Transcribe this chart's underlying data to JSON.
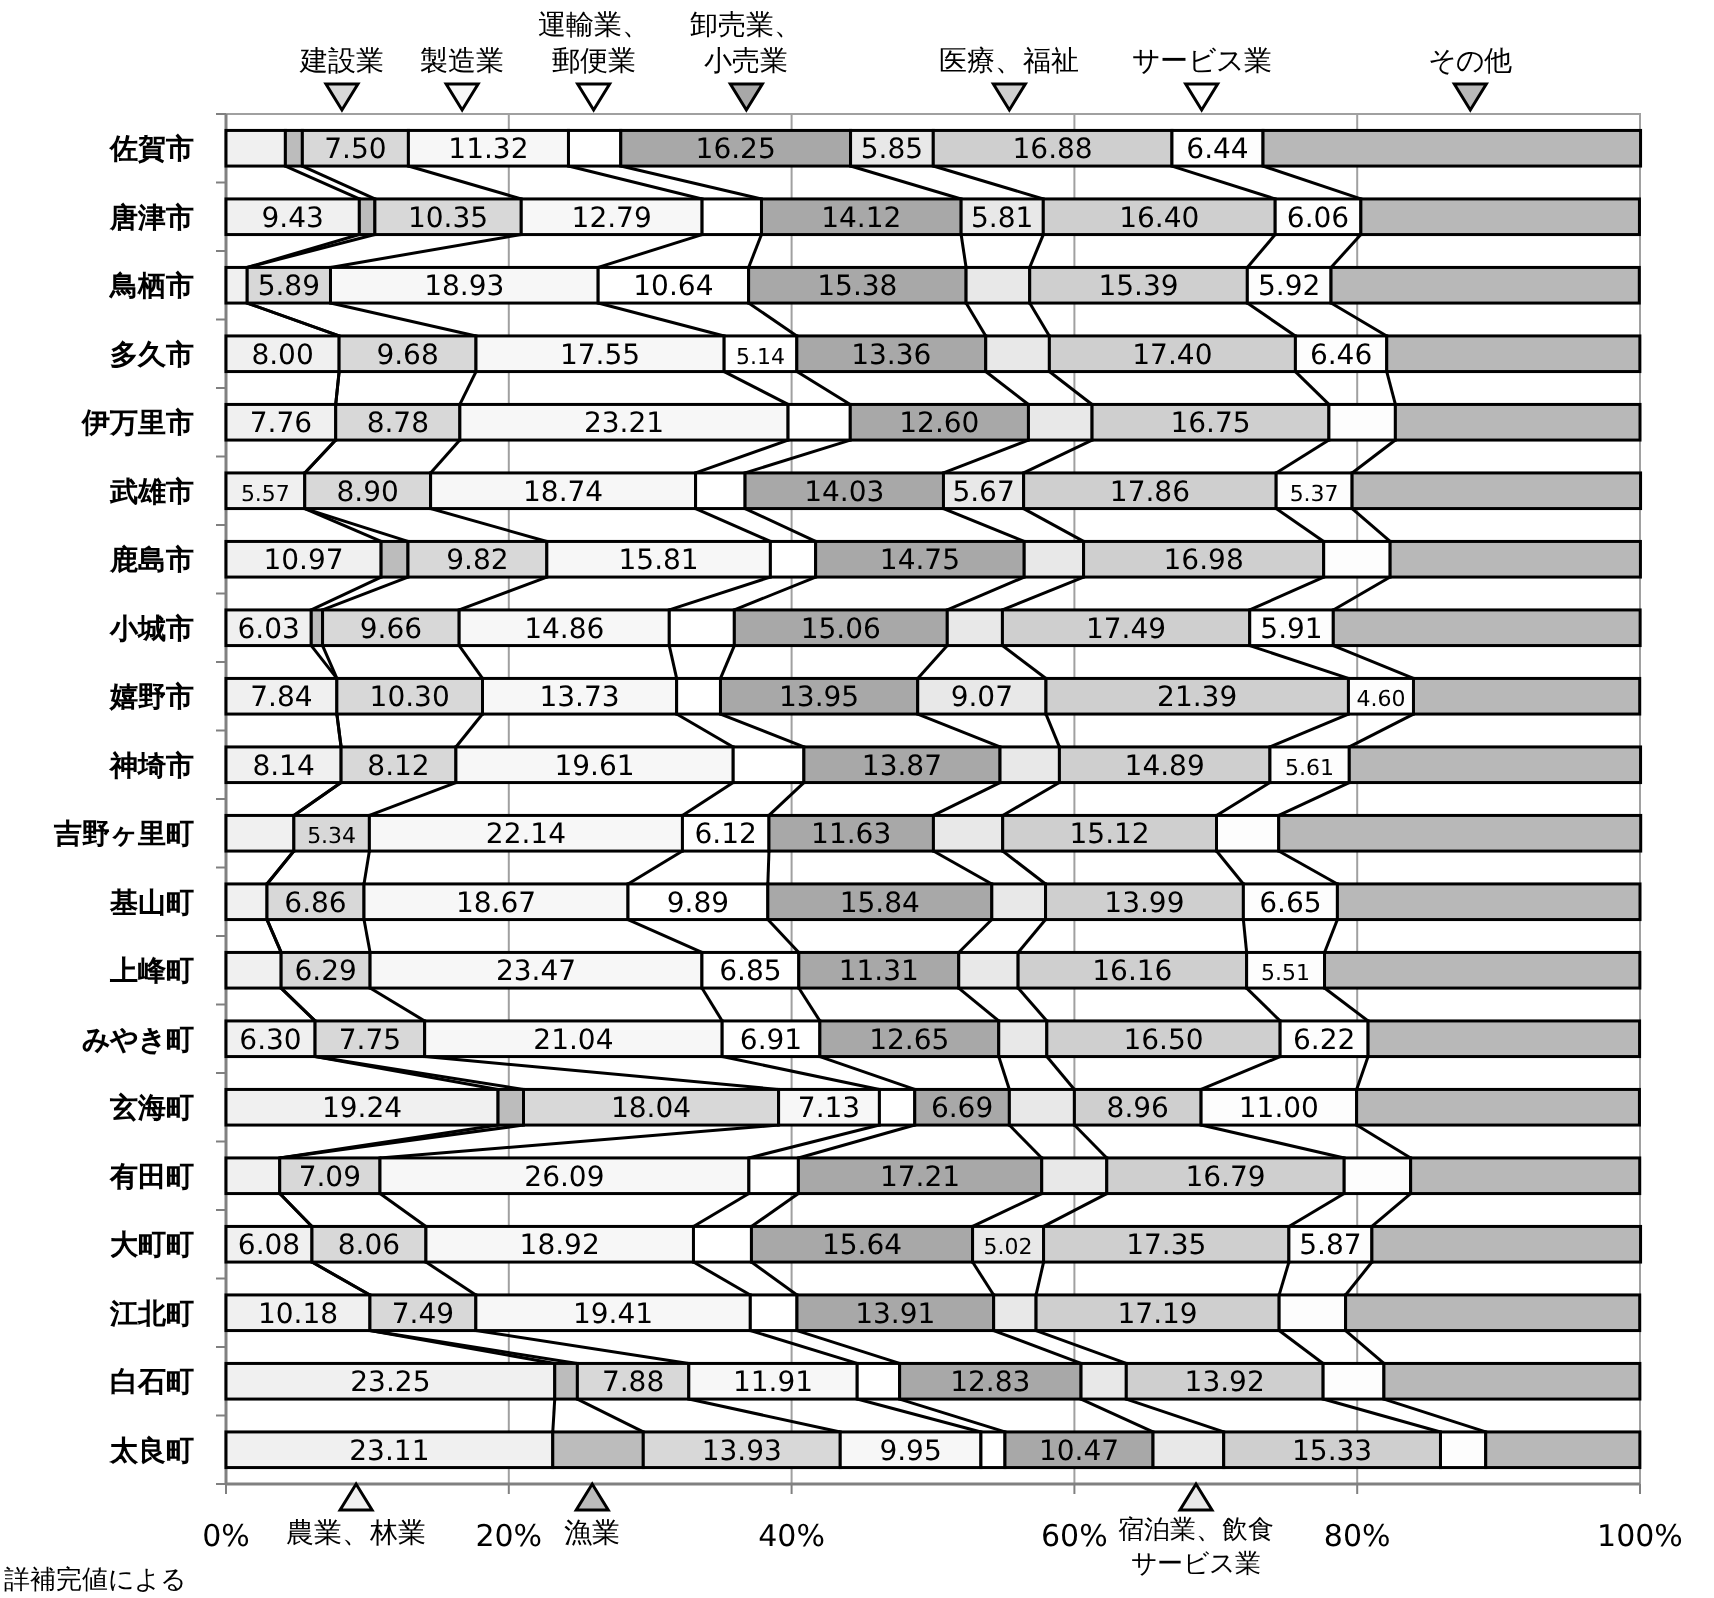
{
  "chart_data": {
    "type": "bar",
    "orientation": "horizontal",
    "stacked": true,
    "categories": [
      "佐賀市",
      "唐津市",
      "鳥栖市",
      "多久市",
      "伊万里市",
      "武雄市",
      "鹿島市",
      "小城市",
      "嬉野市",
      "神埼市",
      "吉野ヶ里町",
      "基山町",
      "上峰町",
      "みやき町",
      "玄海町",
      "有田町",
      "大町町",
      "江北町",
      "白石町",
      "太良町"
    ],
    "series": [
      {
        "name": "農業、林業",
        "color": "#f0f0f0",
        "values": [
          4.2,
          9.43,
          1.5,
          8.0,
          7.76,
          5.57,
          10.97,
          6.03,
          7.84,
          8.14,
          4.8,
          2.9,
          3.9,
          6.3,
          19.24,
          3.8,
          6.08,
          10.18,
          23.25,
          23.11
        ],
        "value_labels": [
          null,
          "9.43",
          null,
          "8.00",
          "7.76",
          "5.57",
          "10.97",
          "6.03",
          "7.84",
          "8.14",
          null,
          null,
          null,
          "6.30",
          "19.24",
          null,
          "6.08",
          "10.18",
          "23.25",
          "23.11"
        ]
      },
      {
        "name": "漁業",
        "color": "#bcbcbc",
        "values": [
          1.2,
          1.1,
          0,
          0,
          0,
          0,
          1.9,
          0.8,
          0,
          0,
          0,
          0,
          0,
          0,
          1.8,
          0,
          0,
          0,
          1.6,
          6.4
        ],
        "value_labels": [
          null,
          null,
          null,
          null,
          null,
          null,
          null,
          null,
          null,
          null,
          null,
          null,
          null,
          null,
          null,
          null,
          null,
          null,
          null,
          null
        ]
      },
      {
        "name": "建設業",
        "color": "#d8d8d8",
        "values": [
          7.5,
          10.35,
          5.89,
          9.68,
          8.78,
          8.9,
          9.82,
          9.66,
          10.3,
          8.12,
          5.34,
          6.86,
          6.29,
          7.75,
          18.04,
          7.09,
          8.06,
          7.49,
          7.88,
          13.93
        ],
        "value_labels": [
          "7.50",
          "10.35",
          "5.89",
          "9.68",
          "8.78",
          "8.90",
          "9.82",
          "9.66",
          "10.30",
          "8.12",
          "5.34",
          "6.86",
          "6.29",
          "7.75",
          "18.04",
          "7.09",
          "8.06",
          "7.49",
          "7.88",
          "13.93"
        ]
      },
      {
        "name": "製造業",
        "color": "#f7f7f7",
        "values": [
          11.32,
          12.79,
          18.93,
          17.55,
          23.21,
          18.74,
          15.81,
          14.86,
          13.73,
          19.61,
          22.14,
          18.67,
          23.47,
          21.04,
          7.13,
          26.09,
          18.92,
          19.41,
          11.91,
          9.95
        ],
        "value_labels": [
          "11.32",
          "12.79",
          "18.93",
          "17.55",
          "23.21",
          "18.74",
          "15.81",
          "14.86",
          "13.73",
          "19.61",
          "22.14",
          "18.67",
          "23.47",
          "21.04",
          "7.13",
          "26.09",
          "18.92",
          "19.41",
          "11.91",
          "9.95"
        ]
      },
      {
        "name": "運輸業、郵便業",
        "color": "#ffffff",
        "values": [
          3.7,
          4.2,
          10.64,
          5.14,
          4.4,
          3.5,
          3.2,
          4.6,
          3.1,
          5.0,
          6.12,
          9.89,
          6.85,
          6.91,
          2.5,
          3.5,
          4.1,
          3.3,
          3.0,
          1.7
        ],
        "value_labels": [
          null,
          null,
          "10.64",
          "5.14",
          null,
          null,
          null,
          null,
          null,
          null,
          "6.12",
          "9.89",
          "6.85",
          "6.91",
          null,
          null,
          null,
          null,
          null,
          null
        ]
      },
      {
        "name": "卸売業、小売業",
        "color": "#a8a8a8",
        "values": [
          16.25,
          14.12,
          15.38,
          13.36,
          12.6,
          14.03,
          14.75,
          15.06,
          13.95,
          13.87,
          11.63,
          15.84,
          11.31,
          12.65,
          6.69,
          17.21,
          15.64,
          13.91,
          12.83,
          10.47
        ],
        "value_labels": [
          "16.25",
          "14.12",
          "15.38",
          "13.36",
          "12.60",
          "14.03",
          "14.75",
          "15.06",
          "13.95",
          "13.87",
          "11.63",
          "15.84",
          "11.31",
          "12.65",
          "6.69",
          "17.21",
          "15.64",
          "13.91",
          "12.83",
          "10.47"
        ]
      },
      {
        "name": "宿泊業、飲食サービス業",
        "color": "#e8e8e8",
        "values": [
          5.85,
          5.81,
          4.5,
          4.5,
          4.5,
          5.67,
          4.2,
          3.9,
          9.07,
          4.2,
          4.9,
          3.8,
          4.2,
          3.4,
          4.6,
          4.6,
          5.02,
          3.0,
          3.2,
          5.0
        ],
        "value_labels": [
          "5.85",
          "5.81",
          null,
          null,
          null,
          "5.67",
          null,
          null,
          "9.07",
          null,
          null,
          null,
          null,
          null,
          null,
          null,
          "5.02",
          null,
          null,
          null
        ]
      },
      {
        "name": "医療、福祉",
        "color": "#cfcfcf",
        "values": [
          16.88,
          16.4,
          15.39,
          17.4,
          16.75,
          17.86,
          16.98,
          17.49,
          21.39,
          14.89,
          15.12,
          13.99,
          16.16,
          16.5,
          8.96,
          16.79,
          17.35,
          17.19,
          13.92,
          15.33
        ],
        "value_labels": [
          "16.88",
          "16.40",
          "15.39",
          "17.40",
          "16.75",
          "17.86",
          "16.98",
          "17.49",
          "21.39",
          "14.89",
          "15.12",
          "13.99",
          "16.16",
          "16.50",
          "8.96",
          "16.79",
          "17.35",
          "17.19",
          "13.92",
          "15.33"
        ]
      },
      {
        "name": "サービス業",
        "color": "#fdfdfd",
        "values": [
          6.44,
          6.06,
          5.92,
          6.46,
          4.7,
          5.37,
          4.7,
          5.91,
          4.6,
          5.61,
          4.4,
          6.65,
          5.51,
          6.22,
          11.0,
          4.7,
          5.87,
          4.7,
          4.3,
          3.2
        ],
        "value_labels": [
          "6.44",
          "6.06",
          "5.92",
          "6.46",
          null,
          "5.37",
          null,
          "5.91",
          "4.60",
          "5.61",
          null,
          "6.65",
          "5.51",
          "6.22",
          "11.00",
          null,
          "5.87",
          null,
          null,
          null
        ]
      },
      {
        "name": "その他",
        "color": "#b8b8b8",
        "values": [
          26.7,
          19.7,
          21.8,
          17.9,
          17.3,
          20.4,
          17.7,
          21.7,
          16.0,
          20.6,
          25.6,
          21.4,
          22.3,
          19.2,
          20.0,
          16.2,
          19.0,
          20.8,
          18.1,
          10.9
        ],
        "value_labels": [
          null,
          null,
          null,
          null,
          null,
          null,
          null,
          null,
          null,
          null,
          null,
          null,
          null,
          null,
          null,
          null,
          null,
          null,
          null,
          null
        ]
      }
    ],
    "xlim": [
      0,
      100
    ],
    "xticks": [
      {
        "value": 0,
        "label": "0%"
      },
      {
        "value": 20,
        "label": "20%"
      },
      {
        "value": 40,
        "label": "40%"
      },
      {
        "value": 60,
        "label": "60%"
      },
      {
        "value": 80,
        "label": "80%"
      },
      {
        "value": 100,
        "label": "100%"
      }
    ],
    "grid": "x",
    "legend": "bottom",
    "annotations": [
      "詳補完値による"
    ]
  }
}
